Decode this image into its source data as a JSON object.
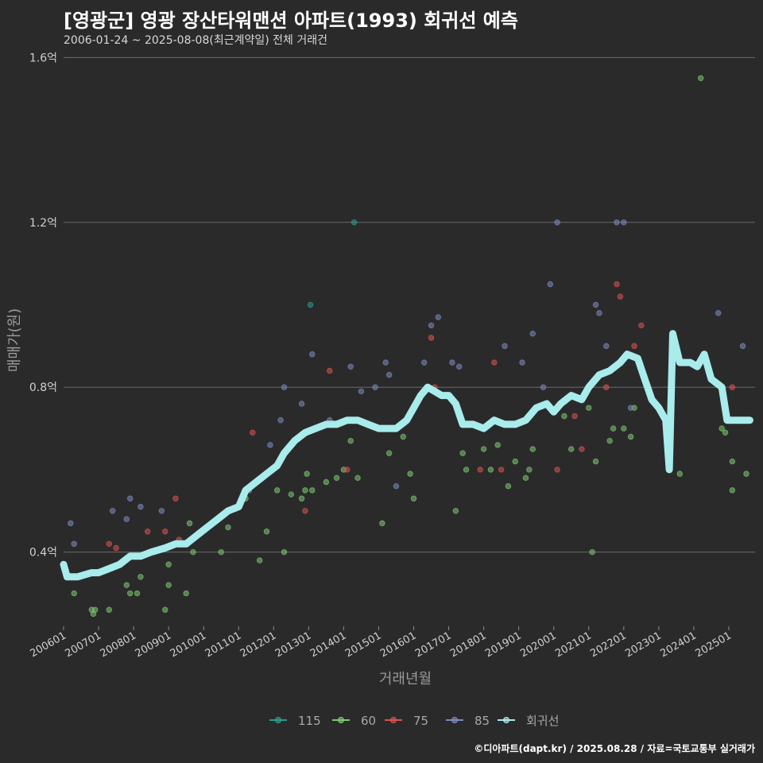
{
  "title": "[영광군] 영광 장산타워맨션 아파트(1993) 회귀선 예측",
  "subtitle": "2006-01-24 ~ 2025-08-08(최근계약일) 전체 거래건",
  "caption": "©디아파트(dapt.kr) / 2025.08.28 / 자료=국토교통부 실거래가",
  "chart_data": {
    "type": "scatter",
    "xlabel": "거래년월",
    "ylabel": "매매가(원)",
    "x_domain": [
      2006.0,
      2025.75
    ],
    "ylim": [
      0.22,
      1.62
    ],
    "yticks": [
      {
        "value": 0.4,
        "label": "0.4억"
      },
      {
        "value": 0.8,
        "label": "0.8억"
      },
      {
        "value": 1.2,
        "label": "1.2억"
      },
      {
        "value": 1.6,
        "label": "1.6억"
      }
    ],
    "xticks": [
      {
        "value": 2006,
        "label": "200601"
      },
      {
        "value": 2007,
        "label": "200701"
      },
      {
        "value": 2008,
        "label": "200801"
      },
      {
        "value": 2009,
        "label": "200901"
      },
      {
        "value": 2010,
        "label": "201001"
      },
      {
        "value": 2011,
        "label": "201101"
      },
      {
        "value": 2012,
        "label": "201201"
      },
      {
        "value": 2013,
        "label": "201301"
      },
      {
        "value": 2014,
        "label": "201401"
      },
      {
        "value": 2015,
        "label": "201501"
      },
      {
        "value": 2016,
        "label": "201601"
      },
      {
        "value": 2017,
        "label": "201701"
      },
      {
        "value": 2018,
        "label": "201801"
      },
      {
        "value": 2019,
        "label": "201901"
      },
      {
        "value": 2020,
        "label": "202001"
      },
      {
        "value": 2021,
        "label": "202101"
      },
      {
        "value": 2022,
        "label": "202201"
      },
      {
        "value": 2023,
        "label": "202301"
      },
      {
        "value": 2024,
        "label": "202401"
      },
      {
        "value": 2025,
        "label": "202501"
      }
    ],
    "series": [
      {
        "name": "115",
        "color": "#2a9d8f",
        "points": [
          [
            2013.05,
            1.0
          ],
          [
            2014.3,
            1.2
          ]
        ]
      },
      {
        "name": "60",
        "color": "#7bc96f",
        "points": [
          [
            2006.3,
            0.3
          ],
          [
            2006.8,
            0.26
          ],
          [
            2006.85,
            0.25
          ],
          [
            2006.9,
            0.26
          ],
          [
            2007.3,
            0.26
          ],
          [
            2007.8,
            0.32
          ],
          [
            2007.9,
            0.3
          ],
          [
            2008.1,
            0.3
          ],
          [
            2008.2,
            0.34
          ],
          [
            2008.9,
            0.26
          ],
          [
            2009.0,
            0.32
          ],
          [
            2009.0,
            0.37
          ],
          [
            2009.5,
            0.3
          ],
          [
            2009.6,
            0.47
          ],
          [
            2009.7,
            0.4
          ],
          [
            2010.5,
            0.4
          ],
          [
            2010.7,
            0.46
          ],
          [
            2011.2,
            0.53
          ],
          [
            2011.6,
            0.38
          ],
          [
            2011.8,
            0.45
          ],
          [
            2012.1,
            0.55
          ],
          [
            2012.3,
            0.4
          ],
          [
            2012.5,
            0.54
          ],
          [
            2012.8,
            0.53
          ],
          [
            2012.9,
            0.55
          ],
          [
            2012.95,
            0.59
          ],
          [
            2013.1,
            0.55
          ],
          [
            2013.5,
            0.57
          ],
          [
            2013.8,
            0.58
          ],
          [
            2014.0,
            0.6
          ],
          [
            2014.2,
            0.67
          ],
          [
            2014.4,
            0.58
          ],
          [
            2015.1,
            0.47
          ],
          [
            2015.3,
            0.64
          ],
          [
            2015.7,
            0.68
          ],
          [
            2015.9,
            0.59
          ],
          [
            2016.0,
            0.53
          ],
          [
            2017.2,
            0.5
          ],
          [
            2017.4,
            0.64
          ],
          [
            2017.5,
            0.6
          ],
          [
            2018.0,
            0.65
          ],
          [
            2018.2,
            0.6
          ],
          [
            2018.4,
            0.66
          ],
          [
            2018.7,
            0.56
          ],
          [
            2018.9,
            0.62
          ],
          [
            2019.2,
            0.58
          ],
          [
            2019.3,
            0.6
          ],
          [
            2019.4,
            0.65
          ],
          [
            2020.3,
            0.73
          ],
          [
            2020.5,
            0.65
          ],
          [
            2021.0,
            0.75
          ],
          [
            2021.1,
            0.4
          ],
          [
            2021.2,
            0.62
          ],
          [
            2021.6,
            0.67
          ],
          [
            2021.7,
            0.7
          ],
          [
            2022.0,
            0.7
          ],
          [
            2022.2,
            0.68
          ],
          [
            2022.3,
            0.75
          ],
          [
            2023.6,
            0.59
          ],
          [
            2024.2,
            1.55
          ],
          [
            2024.8,
            0.7
          ],
          [
            2024.9,
            0.69
          ],
          [
            2025.1,
            0.62
          ],
          [
            2025.1,
            0.55
          ],
          [
            2025.5,
            0.59
          ]
        ]
      },
      {
        "name": "75",
        "color": "#d9534f",
        "points": [
          [
            2007.3,
            0.42
          ],
          [
            2007.5,
            0.41
          ],
          [
            2008.4,
            0.45
          ],
          [
            2008.9,
            0.45
          ],
          [
            2009.2,
            0.53
          ],
          [
            2009.3,
            0.43
          ],
          [
            2011.4,
            0.69
          ],
          [
            2012.9,
            0.5
          ],
          [
            2013.6,
            0.84
          ],
          [
            2014.1,
            0.6
          ],
          [
            2016.5,
            0.92
          ],
          [
            2016.6,
            0.8
          ],
          [
            2017.9,
            0.6
          ],
          [
            2018.3,
            0.86
          ],
          [
            2018.5,
            0.6
          ],
          [
            2020.1,
            0.6
          ],
          [
            2020.6,
            0.73
          ],
          [
            2020.8,
            0.65
          ],
          [
            2021.5,
            0.8
          ],
          [
            2021.8,
            1.05
          ],
          [
            2021.9,
            1.02
          ],
          [
            2022.3,
            0.9
          ],
          [
            2022.5,
            0.95
          ],
          [
            2025.1,
            0.8
          ]
        ]
      },
      {
        "name": "85",
        "color": "#7b8bbf",
        "points": [
          [
            2006.2,
            0.47
          ],
          [
            2006.3,
            0.42
          ],
          [
            2007.4,
            0.5
          ],
          [
            2007.8,
            0.48
          ],
          [
            2007.9,
            0.53
          ],
          [
            2008.2,
            0.51
          ],
          [
            2008.8,
            0.5
          ],
          [
            2011.3,
            0.55
          ],
          [
            2011.9,
            0.66
          ],
          [
            2012.2,
            0.72
          ],
          [
            2012.3,
            0.8
          ],
          [
            2012.8,
            0.76
          ],
          [
            2013.1,
            0.88
          ],
          [
            2013.6,
            0.72
          ],
          [
            2014.2,
            0.85
          ],
          [
            2014.5,
            0.79
          ],
          [
            2014.9,
            0.8
          ],
          [
            2015.2,
            0.86
          ],
          [
            2015.3,
            0.83
          ],
          [
            2015.5,
            0.56
          ],
          [
            2016.3,
            0.86
          ],
          [
            2016.5,
            0.95
          ],
          [
            2016.7,
            0.97
          ],
          [
            2017.1,
            0.86
          ],
          [
            2017.3,
            0.85
          ],
          [
            2018.6,
            0.9
          ],
          [
            2019.1,
            0.86
          ],
          [
            2019.4,
            0.93
          ],
          [
            2019.7,
            0.8
          ],
          [
            2019.9,
            1.05
          ],
          [
            2020.1,
            1.2
          ],
          [
            2021.2,
            1.0
          ],
          [
            2021.3,
            0.98
          ],
          [
            2021.5,
            0.9
          ],
          [
            2021.8,
            1.2
          ],
          [
            2022.0,
            1.2
          ],
          [
            2022.2,
            0.75
          ],
          [
            2024.7,
            0.98
          ],
          [
            2025.4,
            0.9
          ]
        ]
      }
    ],
    "regression": {
      "name": "회귀선",
      "color": "#a8ecec",
      "points": [
        [
          2006.0,
          0.37
        ],
        [
          2006.1,
          0.34
        ],
        [
          2006.4,
          0.34
        ],
        [
          2006.8,
          0.35
        ],
        [
          2007.0,
          0.35
        ],
        [
          2007.3,
          0.36
        ],
        [
          2007.6,
          0.37
        ],
        [
          2007.9,
          0.39
        ],
        [
          2008.2,
          0.39
        ],
        [
          2008.5,
          0.4
        ],
        [
          2008.9,
          0.41
        ],
        [
          2009.2,
          0.42
        ],
        [
          2009.5,
          0.42
        ],
        [
          2009.8,
          0.44
        ],
        [
          2010.1,
          0.46
        ],
        [
          2010.4,
          0.48
        ],
        [
          2010.7,
          0.5
        ],
        [
          2011.0,
          0.51
        ],
        [
          2011.2,
          0.55
        ],
        [
          2011.5,
          0.57
        ],
        [
          2011.8,
          0.59
        ],
        [
          2012.1,
          0.61
        ],
        [
          2012.3,
          0.64
        ],
        [
          2012.6,
          0.67
        ],
        [
          2012.9,
          0.69
        ],
        [
          2013.2,
          0.7
        ],
        [
          2013.5,
          0.71
        ],
        [
          2013.8,
          0.71
        ],
        [
          2014.1,
          0.72
        ],
        [
          2014.4,
          0.72
        ],
        [
          2014.7,
          0.71
        ],
        [
          2015.0,
          0.7
        ],
        [
          2015.3,
          0.7
        ],
        [
          2015.5,
          0.7
        ],
        [
          2015.8,
          0.72
        ],
        [
          2016.0,
          0.75
        ],
        [
          2016.2,
          0.78
        ],
        [
          2016.4,
          0.8
        ],
        [
          2016.6,
          0.79
        ],
        [
          2016.8,
          0.78
        ],
        [
          2017.0,
          0.78
        ],
        [
          2017.2,
          0.76
        ],
        [
          2017.4,
          0.71
        ],
        [
          2017.7,
          0.71
        ],
        [
          2018.0,
          0.7
        ],
        [
          2018.3,
          0.72
        ],
        [
          2018.6,
          0.71
        ],
        [
          2018.9,
          0.71
        ],
        [
          2019.2,
          0.72
        ],
        [
          2019.5,
          0.75
        ],
        [
          2019.8,
          0.76
        ],
        [
          2020.0,
          0.74
        ],
        [
          2020.2,
          0.76
        ],
        [
          2020.5,
          0.78
        ],
        [
          2020.8,
          0.77
        ],
        [
          2021.0,
          0.8
        ],
        [
          2021.3,
          0.83
        ],
        [
          2021.6,
          0.84
        ],
        [
          2021.9,
          0.86
        ],
        [
          2022.1,
          0.88
        ],
        [
          2022.4,
          0.87
        ],
        [
          2022.6,
          0.82
        ],
        [
          2022.8,
          0.77
        ],
        [
          2023.0,
          0.75
        ],
        [
          2023.2,
          0.72
        ],
        [
          2023.3,
          0.6
        ],
        [
          2023.4,
          0.93
        ],
        [
          2023.6,
          0.86
        ],
        [
          2023.9,
          0.86
        ],
        [
          2024.1,
          0.85
        ],
        [
          2024.3,
          0.88
        ],
        [
          2024.5,
          0.82
        ],
        [
          2024.8,
          0.8
        ],
        [
          2024.95,
          0.72
        ],
        [
          2025.2,
          0.72
        ],
        [
          2025.6,
          0.72
        ]
      ]
    }
  }
}
